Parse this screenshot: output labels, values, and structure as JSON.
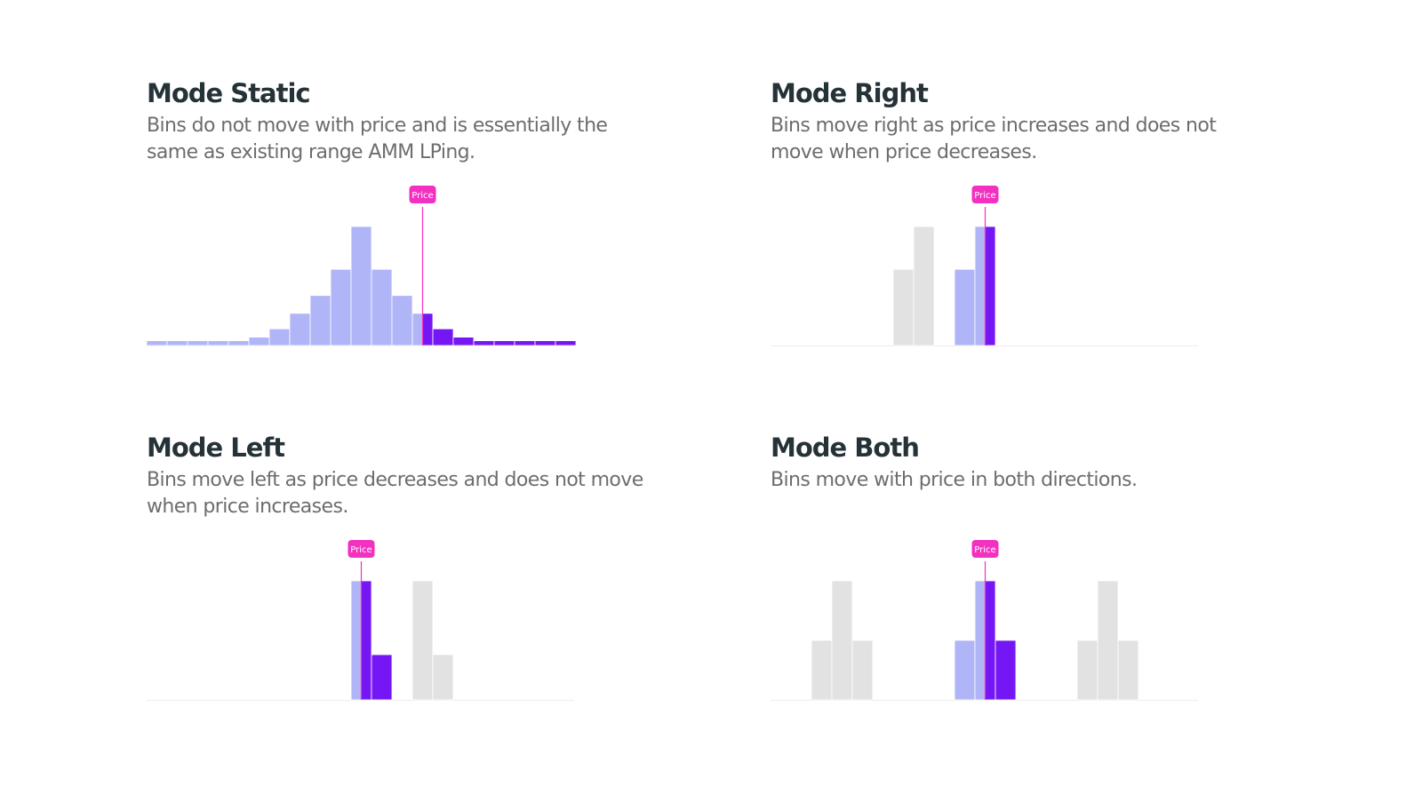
{
  "colors": {
    "bin_active_light": "#b0b5f8",
    "bin_active_dark": "#7517f5",
    "bin_inactive": "#e2e2e2",
    "price_marker": "#f231c0",
    "baseline": "#ececec"
  },
  "price_label": "Price",
  "panels": [
    {
      "id": "static",
      "title": "Mode Static",
      "description": "Bins do not move with price and is essentially the same as existing range AMM LPing."
    },
    {
      "id": "right",
      "title": "Mode Right",
      "description": "Bins move right as price increases and does not move when price decreases."
    },
    {
      "id": "left",
      "title": "Mode Left",
      "description": "Bins move left as price decreases and does not move when price increases."
    },
    {
      "id": "both",
      "title": "Mode Both",
      "description": "Bins move with price in both directions."
    }
  ],
  "chart_data": [
    {
      "type": "bar",
      "panel": "static",
      "price_position": 13.5,
      "bins": [
        {
          "i": 0,
          "h": 4,
          "c": "light"
        },
        {
          "i": 1,
          "h": 4,
          "c": "light"
        },
        {
          "i": 2,
          "h": 4,
          "c": "light"
        },
        {
          "i": 3,
          "h": 4,
          "c": "light"
        },
        {
          "i": 4,
          "h": 4,
          "c": "light"
        },
        {
          "i": 5,
          "h": 7,
          "c": "light"
        },
        {
          "i": 6,
          "h": 14,
          "c": "light"
        },
        {
          "i": 7,
          "h": 27,
          "c": "light"
        },
        {
          "i": 8,
          "h": 42,
          "c": "light"
        },
        {
          "i": 9,
          "h": 64,
          "c": "light"
        },
        {
          "i": 10,
          "h": 100,
          "c": "light"
        },
        {
          "i": 11,
          "h": 64,
          "c": "light"
        },
        {
          "i": 12,
          "h": 42,
          "c": "light"
        },
        {
          "i": 13,
          "h": 27,
          "c": "split"
        },
        {
          "i": 14,
          "h": 14,
          "c": "dark"
        },
        {
          "i": 15,
          "h": 7,
          "c": "dark"
        },
        {
          "i": 16,
          "h": 4,
          "c": "dark"
        },
        {
          "i": 17,
          "h": 4,
          "c": "dark"
        },
        {
          "i": 18,
          "h": 4,
          "c": "dark"
        },
        {
          "i": 19,
          "h": 4,
          "c": "dark"
        },
        {
          "i": 20,
          "h": 4,
          "c": "dark"
        }
      ]
    },
    {
      "type": "bar",
      "panel": "right",
      "price_position": 10.5,
      "bins": [
        {
          "i": 6,
          "h": 64,
          "c": "gray"
        },
        {
          "i": 7,
          "h": 100,
          "c": "gray"
        },
        {
          "i": 9,
          "h": 64,
          "c": "light"
        },
        {
          "i": 10,
          "h": 100,
          "c": "split"
        }
      ]
    },
    {
      "type": "bar",
      "panel": "left",
      "price_position": 10.5,
      "bins": [
        {
          "i": 10,
          "h": 100,
          "c": "split"
        },
        {
          "i": 11,
          "h": 38,
          "c": "dark"
        },
        {
          "i": 13,
          "h": 100,
          "c": "gray"
        },
        {
          "i": 14,
          "h": 38,
          "c": "gray"
        }
      ]
    },
    {
      "type": "bar",
      "panel": "both",
      "price_position": 10.5,
      "bins": [
        {
          "i": 2,
          "h": 50,
          "c": "gray"
        },
        {
          "i": 3,
          "h": 100,
          "c": "gray"
        },
        {
          "i": 4,
          "h": 50,
          "c": "gray"
        },
        {
          "i": 9,
          "h": 50,
          "c": "light"
        },
        {
          "i": 10,
          "h": 100,
          "c": "split"
        },
        {
          "i": 11,
          "h": 50,
          "c": "dark"
        },
        {
          "i": 15,
          "h": 50,
          "c": "gray"
        },
        {
          "i": 16,
          "h": 100,
          "c": "gray"
        },
        {
          "i": 17,
          "h": 50,
          "c": "gray"
        }
      ]
    }
  ]
}
